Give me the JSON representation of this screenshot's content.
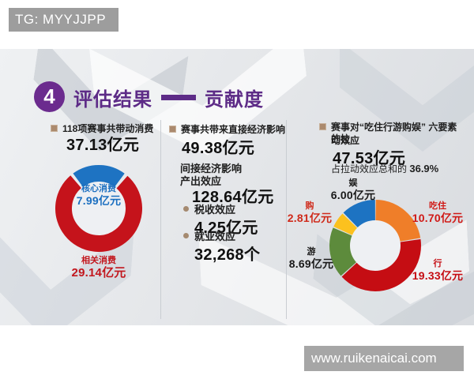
{
  "overlays": {
    "telegram_badge": "TG: MYYJJPP",
    "website": "www.ruikenaicai.com"
  },
  "slide": {
    "title": {
      "index": "4",
      "main": "评估结果",
      "highlight": "贡献度"
    },
    "left_panel": {
      "heading": "118项赛事共带动消费",
      "amount": "37.13亿元"
    },
    "middle_panel": {
      "direct_heading": "赛事共带来直接经济影响",
      "direct_amount": "49.38亿元",
      "indirect_heading": "间接经济影响",
      "output_label": "产出效应",
      "output_amount": "128.64亿元",
      "tax_label": "税收效应",
      "tax_amount": "4.25亿元",
      "employment_label": "就业效应",
      "employment_amount": "32,268个"
    },
    "right_panel": {
      "heading_line1": "赛事对“吃住行游购娱” 六要素的拉",
      "heading_line2": "动效应",
      "amount": "47.53亿元",
      "share_prefix": "占拉动效应总和的",
      "share_value": "36.9%"
    }
  },
  "colors": {
    "accent_purple": "#5d2b87",
    "badge_gray": "#9d9d9d",
    "bullet_brown": "#ab8a6e",
    "divider": "#c9cdd2"
  },
  "chart_data": [
    {
      "type": "pie",
      "subtype": "donut",
      "title": "118项赛事共带动消费 37.13亿元",
      "total": 37.13,
      "total_label": "37.13亿元",
      "unit": "亿元",
      "start_angle_deg": -38.7,
      "gap_deg": 5,
      "legend_position": "on-chart",
      "segments": [
        {
          "label": "核心消费",
          "value": 7.99,
          "value_label": "7.99亿元",
          "color": "#1e73c2",
          "text_color": "#1b6fc0"
        },
        {
          "label": "相关消费",
          "value": 29.14,
          "value_label": "29.14亿元",
          "color": "#c5131b",
          "text_color": "#c2161d"
        }
      ]
    },
    {
      "type": "pie",
      "subtype": "donut",
      "title": "赛事对“吃住行游购娱”六要素的拉动效应 47.53亿元",
      "total": 47.53,
      "total_label": "47.53亿元",
      "unit": "亿元",
      "start_angle_deg": 0,
      "gap_deg": 1.5,
      "legend_position": "around-chart",
      "segments": [
        {
          "label": "吃住",
          "value": 10.7,
          "value_label": "10.70亿元",
          "color": "#ef7e29",
          "text_color": "#d01916"
        },
        {
          "label": "行",
          "value": 19.33,
          "value_label": "19.33亿元",
          "color": "#c50d13",
          "text_color": "#c50d13"
        },
        {
          "label": "游",
          "value": 8.69,
          "value_label": "8.69亿元",
          "color": "#5d8b3c",
          "text_color": "#1a1a1a"
        },
        {
          "label": "购",
          "value": 2.81,
          "value_label": "2.81亿元",
          "color": "#fcc11e",
          "text_color": "#cf2a1a"
        },
        {
          "label": "娱",
          "value": 6.0,
          "value_label": "6.00亿元",
          "color": "#1d73c2",
          "text_color": "#1a1a1a"
        }
      ]
    }
  ]
}
